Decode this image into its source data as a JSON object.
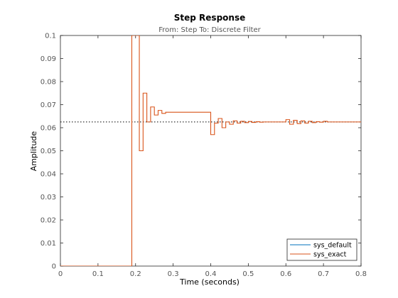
{
  "chart_data": {
    "type": "line",
    "title": "Step Response",
    "subtitle": "From: Step  To: Discrete Filter",
    "xlabel": "Time (seconds)",
    "ylabel": "Amplitude",
    "xlim": [
      0,
      0.8
    ],
    "ylim": [
      0,
      0.1
    ],
    "xticks": [
      "0",
      "0.1",
      "0.2",
      "0.3",
      "0.4",
      "0.5",
      "0.6",
      "0.7",
      "0.8"
    ],
    "yticks": [
      "0",
      "0.01",
      "0.02",
      "0.03",
      "0.04",
      "0.05",
      "0.06",
      "0.07",
      "0.08",
      "0.09",
      "0.1"
    ],
    "grid": false,
    "legend_position": "bottom-right",
    "steady_state": 0.0625,
    "colors": {
      "sys_default": "#0072BD",
      "sys_exact": "#D95319",
      "axes": "#262626",
      "reference": "#000000"
    },
    "series": [
      {
        "name": "sys_default",
        "style": "stairs",
        "x": [
          0,
          0.19
        ],
        "y": [
          0,
          0
        ]
      },
      {
        "name": "sys_exact",
        "style": "stairs",
        "x": [
          0,
          0.19,
          0.2,
          0.21,
          0.22,
          0.23,
          0.24,
          0.25,
          0.26,
          0.27,
          0.28,
          0.29,
          0.4,
          0.41,
          0.42,
          0.43,
          0.44,
          0.45,
          0.46,
          0.47,
          0.48,
          0.49,
          0.5,
          0.51,
          0.52,
          0.53,
          0.54,
          0.55,
          0.56,
          0.57,
          0.58,
          0.59,
          0.6,
          0.61,
          0.62,
          0.63,
          0.64,
          0.65,
          0.66,
          0.67,
          0.68,
          0.69,
          0.7,
          0.71,
          0.72,
          0.8
        ],
        "y": [
          0,
          0.1,
          0.1,
          0.05,
          0.075,
          0.0625,
          0.069,
          0.0655,
          0.0675,
          0.0662,
          0.0667,
          0.0667,
          0.057,
          0.062,
          0.064,
          0.06,
          0.0625,
          0.0615,
          0.063,
          0.062,
          0.0628,
          0.0622,
          0.0627,
          0.0623,
          0.0626,
          0.0624,
          0.0625,
          0.0625,
          0.0625,
          0.0625,
          0.0625,
          0.0625,
          0.0635,
          0.0615,
          0.0632,
          0.0618,
          0.063,
          0.062,
          0.0628,
          0.0622,
          0.0626,
          0.0624,
          0.0628,
          0.0625,
          0.0625,
          0.0625
        ]
      }
    ]
  }
}
